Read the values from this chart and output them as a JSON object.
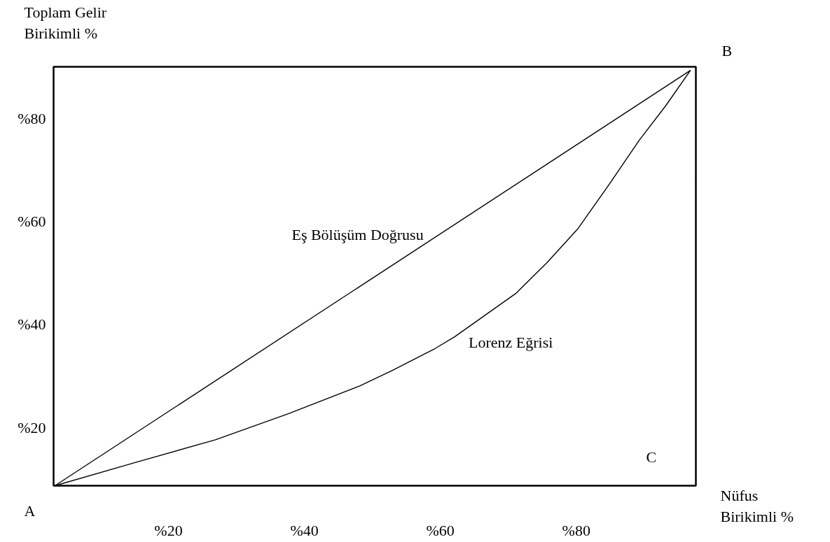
{
  "chart_data": {
    "type": "line",
    "xlabel": "Nüfus\nBirikimli %",
    "ylabel": "Toplam Gelir\nBirikimli %",
    "xlim": [
      3.1,
      97.6
    ],
    "ylim": [
      8.7,
      90
    ],
    "xticks": [
      {
        "value": 20,
        "label": "%20"
      },
      {
        "value": 40,
        "label": "%40"
      },
      {
        "value": 60,
        "label": "%60"
      },
      {
        "value": 80,
        "label": "%80"
      }
    ],
    "yticks": [
      {
        "value": 20,
        "label": "%20"
      },
      {
        "value": 40,
        "label": "%40"
      },
      {
        "value": 60,
        "label": "%60"
      },
      {
        "value": 80,
        "label": "%80"
      }
    ],
    "grid": false,
    "legend": false,
    "series": [
      {
        "name": "Eş Bölüşüm Doğrusu",
        "color": "#000000",
        "x": [
          3.3,
          96.8
        ],
        "values": [
          8.7,
          89.3
        ]
      },
      {
        "name": "Lorenz Eğrisi",
        "color": "#000000",
        "x": [
          3.3,
          15.1,
          26.9,
          37.7,
          48.2,
          53.0,
          59.2,
          62.1,
          71.1,
          75.7,
          80.2,
          84.7,
          89.3,
          93.2,
          96.8
        ],
        "values": [
          8.7,
          13.2,
          17.6,
          22.7,
          28.1,
          31.1,
          35.3,
          37.6,
          46.0,
          52.0,
          58.5,
          66.9,
          75.8,
          82.5,
          89.3
        ]
      }
    ],
    "annotations": [
      "A",
      "B",
      "C"
    ]
  }
}
